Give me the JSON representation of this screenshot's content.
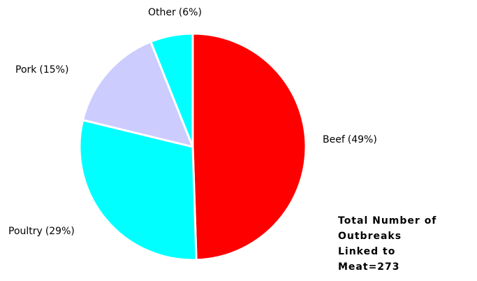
{
  "chart_data": {
    "type": "pie",
    "categories": [
      "Beef",
      "Poultry",
      "Pork",
      "Other"
    ],
    "values": [
      49,
      29,
      15,
      6
    ],
    "value_labels": [
      "(49%)",
      "(29%)",
      "(15%)",
      "(6%)"
    ],
    "colors": [
      "#ff0000",
      "#00ffff",
      "#ccccff",
      "#00ffff"
    ],
    "annotation": [
      "Total Number of",
      "Outbreaks",
      "Linked to",
      "Meat=273"
    ]
  }
}
